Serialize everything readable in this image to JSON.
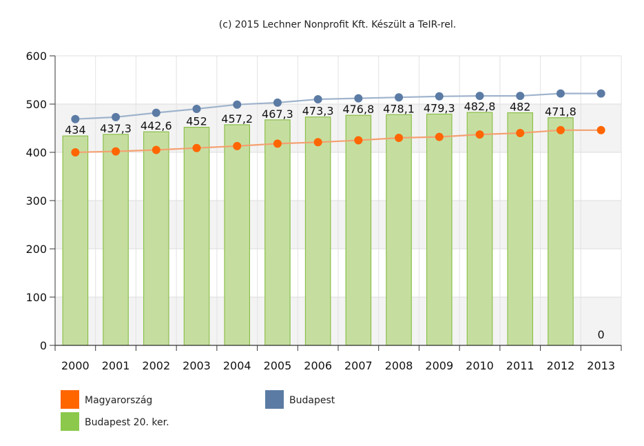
{
  "chart_data": {
    "type": "bar",
    "credit": "(c) 2015 Lechner Nonprofit Kft. Készült a TeIR-rel.",
    "categories": [
      "2000",
      "2001",
      "2002",
      "2003",
      "2004",
      "2005",
      "2006",
      "2007",
      "2008",
      "2009",
      "2010",
      "2011",
      "2012",
      "2013"
    ],
    "ylim": [
      0,
      600
    ],
    "yticks": [
      0,
      100,
      200,
      300,
      400,
      500,
      600
    ],
    "grid": true,
    "legend_position": "bottom-left",
    "series": [
      {
        "name": "Budapest 20. ker.",
        "type": "bar",
        "color": "#c5dea0",
        "stroke": "#8cbf4a",
        "values": [
          434,
          437.3,
          442.6,
          452,
          457.2,
          467.3,
          473.3,
          476.8,
          478.1,
          479.3,
          482.8,
          482,
          471.8,
          0
        ],
        "labels": [
          "434",
          "437,3",
          "442,6",
          "452",
          "457,2",
          "467,3",
          "473,3",
          "476,8",
          "478,1",
          "479,3",
          "482,8",
          "482",
          "471,8",
          "0"
        ]
      },
      {
        "name": "Magyarország",
        "type": "line",
        "color": "#ff6600",
        "line_color": "#f4a070",
        "values": [
          400,
          402,
          405,
          409,
          413,
          418,
          421,
          425,
          430,
          432,
          437,
          440,
          446,
          446
        ]
      },
      {
        "name": "Budapest",
        "type": "line",
        "color": "#5b7ba4",
        "line_color": "#9fb3cc",
        "values": [
          469,
          473,
          482,
          490,
          499,
          503,
          510,
          512,
          514,
          516,
          517,
          517,
          522,
          522
        ]
      }
    ],
    "legend": [
      {
        "name": "Magyarország",
        "color": "#ff6600"
      },
      {
        "name": "Budapest",
        "color": "#5b7ba4"
      },
      {
        "name": "Budapest 20. ker.",
        "color": "#8cc84b"
      }
    ]
  }
}
